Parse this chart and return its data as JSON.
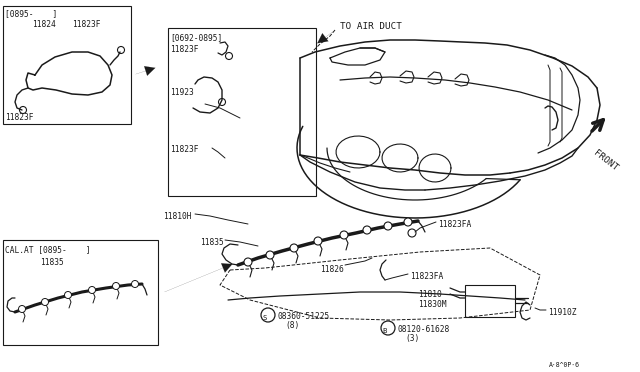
{
  "bg_color": "#ffffff",
  "line_color": "#1a1a1a",
  "fig_width": 6.4,
  "fig_height": 3.72,
  "dpi": 100,
  "labels": {
    "to_air_duct": "TO AIR DUCT",
    "front": "FRONT",
    "box1_title": "[0895-    ]",
    "box1_p1": "11824",
    "box1_p2": "11823F",
    "box1_p3": "11823F",
    "box2_title": "[0692-0895]",
    "box2_p1": "11823F",
    "box2_p2": "11923",
    "box2_p3": "11823F",
    "box3_title": "CAL.AT [0895-    ]",
    "box3_p1": "11835",
    "part_11810H": "11810H",
    "part_11835": "11835",
    "part_11826": "11826",
    "part_11823FA_1": "11823FA",
    "part_11823FA_2": "11823FA",
    "part_11810": "11810",
    "part_11830M": "11830M",
    "part_11910Z": "11910Z",
    "screw_s": "08360-51225",
    "screw_s2": "(8)",
    "bolt_b": "08120-61628",
    "bolt_b2": "(3)",
    "ref_code": "A·8^0P·6"
  },
  "manifold": {
    "top_outline_x": [
      310,
      330,
      350,
      370,
      395,
      415,
      430,
      455,
      480,
      500,
      520,
      545,
      565,
      580,
      590,
      600,
      595,
      575,
      555,
      530,
      505,
      480,
      455,
      430,
      400,
      370,
      345,
      320,
      305,
      295,
      300,
      310
    ],
    "top_outline_y": [
      52,
      47,
      40,
      35,
      32,
      33,
      36,
      38,
      40,
      40,
      42,
      48,
      55,
      65,
      75,
      88,
      100,
      108,
      112,
      115,
      118,
      118,
      115,
      112,
      110,
      110,
      108,
      105,
      100,
      80,
      65,
      52
    ]
  }
}
